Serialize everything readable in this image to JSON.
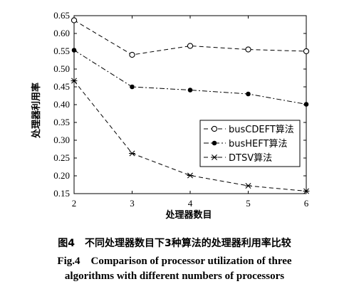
{
  "chart_data": {
    "type": "line",
    "xlabel": "处理器数目",
    "ylabel": "处理器利用率",
    "x": [
      2,
      3,
      4,
      5,
      6
    ],
    "xlim": [
      2,
      6
    ],
    "ylim": [
      0.15,
      0.65
    ],
    "xticks": [
      "2",
      "3",
      "4",
      "5",
      "6"
    ],
    "yticks": [
      "0.15",
      "0.20",
      "0.25",
      "0.30",
      "0.35",
      "0.40",
      "0.45",
      "0.50",
      "0.55",
      "0.60",
      "0.65"
    ],
    "legend_position": "right",
    "series": [
      {
        "name": "busCDEFT算法",
        "values": [
          0.637,
          0.54,
          0.565,
          0.555,
          0.55
        ],
        "marker": "open-circle",
        "dash": "dashed"
      },
      {
        "name": "busHEFT算法",
        "values": [
          0.553,
          0.45,
          0.441,
          0.43,
          0.401
        ],
        "marker": "dot",
        "dash": "dash-dot"
      },
      {
        "name": "DTSV算法",
        "values": [
          0.467,
          0.263,
          0.201,
          0.172,
          0.157
        ],
        "marker": "star",
        "dash": "dashed"
      }
    ]
  },
  "caption": {
    "cn": "图4　不同处理器数目下3种算法的处理器利用率比较",
    "en_line1": "Fig.4　Comparison of processor utilization of three",
    "en_line2": "algorithms with different numbers of processors"
  }
}
